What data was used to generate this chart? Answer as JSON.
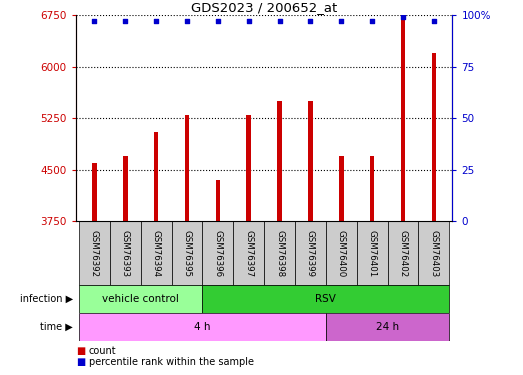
{
  "title": "GDS2023 / 200652_at",
  "samples": [
    "GSM76392",
    "GSM76393",
    "GSM76394",
    "GSM76395",
    "GSM76396",
    "GSM76397",
    "GSM76398",
    "GSM76399",
    "GSM76400",
    "GSM76401",
    "GSM76402",
    "GSM76403"
  ],
  "counts": [
    4600,
    4700,
    5050,
    5300,
    4350,
    5300,
    5500,
    5500,
    4700,
    4700,
    6750,
    6200
  ],
  "percentile_ranks": [
    97,
    97,
    97,
    97,
    97,
    97,
    97,
    97,
    97,
    97,
    99,
    97
  ],
  "ymin": 3750,
  "ymax": 6750,
  "yticks": [
    3750,
    4500,
    5250,
    6000,
    6750
  ],
  "right_yticks": [
    0,
    25,
    50,
    75,
    100
  ],
  "right_ylabels": [
    "0",
    "25",
    "50",
    "75",
    "100%"
  ],
  "bar_color": "#CC0000",
  "dot_color": "#0000CC",
  "infection_groups": [
    {
      "label": "vehicle control",
      "start": 0,
      "end": 4,
      "color": "#99FF99"
    },
    {
      "label": "RSV",
      "start": 4,
      "end": 12,
      "color": "#33CC33"
    }
  ],
  "time_groups": [
    {
      "label": "4 h",
      "start": 0,
      "end": 8,
      "color": "#FF99FF"
    },
    {
      "label": "24 h",
      "start": 8,
      "end": 12,
      "color": "#CC66CC"
    }
  ],
  "bg_color": "#CCCCCC",
  "plot_bg": "#FFFFFF",
  "bar_width": 0.15
}
